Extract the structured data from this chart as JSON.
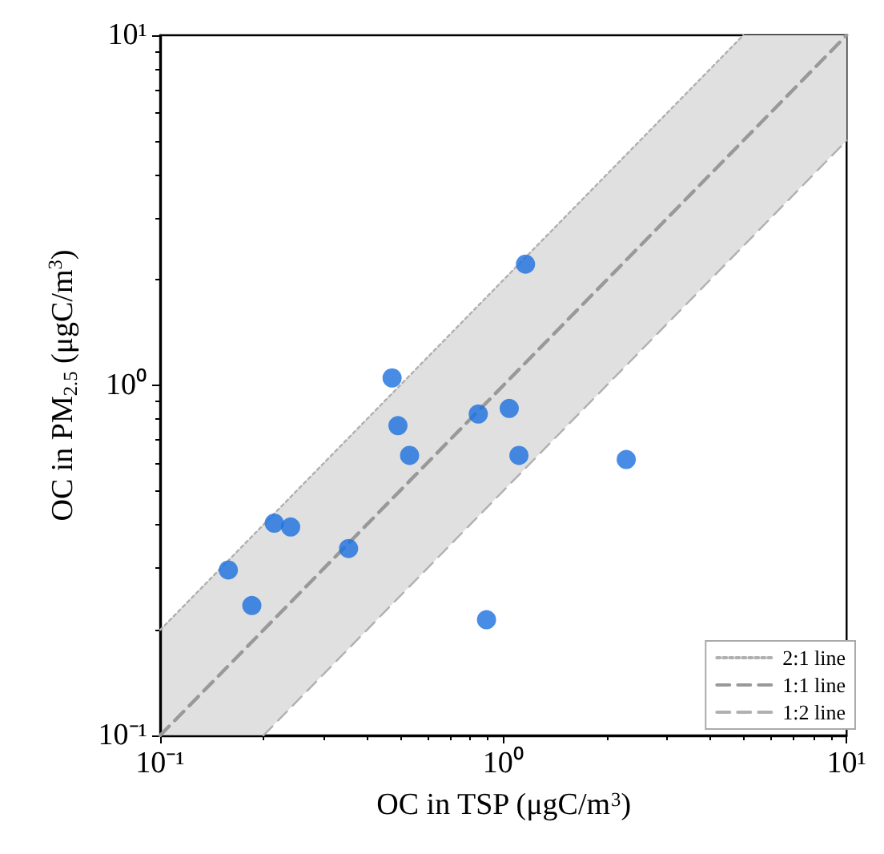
{
  "chart_data": {
    "type": "scatter",
    "xlabel": "OC in TSP (μgC/m$^{3}$)",
    "ylabel": "OC in PM$_{2.5}$ (μgC/m$^{3}$)",
    "log": "xy",
    "xlim": [
      0.1,
      10
    ],
    "ylim": [
      0.1,
      10
    ],
    "xticks": [
      {
        "value": 0.1,
        "label": "10⁻¹"
      },
      {
        "value": 1,
        "label": "10⁰"
      },
      {
        "value": 10,
        "label": "10¹"
      }
    ],
    "yticks": [
      {
        "value": 0.1,
        "label": "10⁻¹"
      },
      {
        "value": 1,
        "label": "10⁰"
      },
      {
        "value": 10,
        "label": "10¹"
      }
    ],
    "grid": false,
    "legend": "bottom right",
    "marker": "circle",
    "series": [
      {
        "color": "#1a6fdf",
        "x": [
          0.158,
          0.185,
          0.215,
          0.24,
          0.354,
          0.474,
          0.493,
          0.533,
          0.845,
          1.04,
          1.11,
          1.16,
          0.893,
          2.28
        ],
        "values": [
          0.297,
          0.235,
          0.404,
          0.394,
          0.342,
          1.05,
          0.767,
          0.631,
          0.828,
          0.859,
          0.631,
          2.22,
          0.214,
          0.614
        ]
      },
      {
        "name": "2:1 line",
        "type": "line",
        "marker": "none",
        "line_style": "dotted",
        "color": "#b0b0b0",
        "x": [
          0.1,
          5
        ],
        "values": [
          0.2,
          10
        ]
      },
      {
        "name": "1:1 line",
        "type": "line",
        "marker": "none",
        "line_style": "dashed",
        "color": "#999999",
        "x": [
          0.1,
          10
        ],
        "values": [
          0.1,
          10
        ]
      },
      {
        "name": "1:2 line",
        "type": "line",
        "marker": "none",
        "line_style": "dashed",
        "color": "#b0b0b0",
        "x": [
          0.2,
          10
        ],
        "values": [
          0.1,
          5
        ]
      }
    ]
  }
}
